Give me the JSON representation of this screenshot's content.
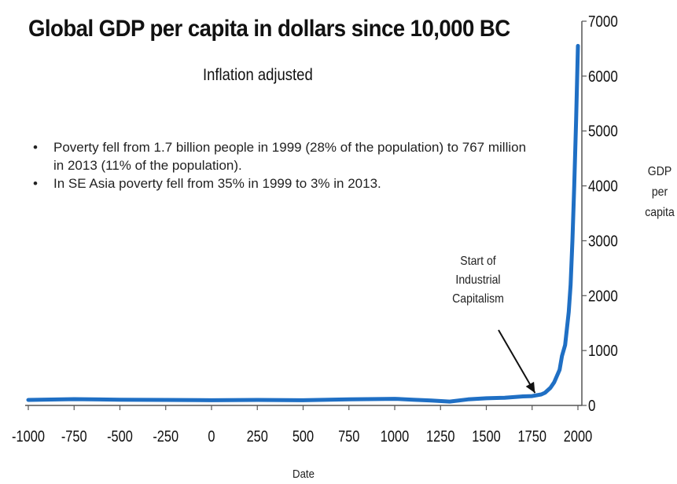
{
  "title": "Global GDP per capita in dollars since 10,000 BC",
  "subtitle": "Inflation adjusted",
  "notes": [
    "Poverty fell from 1.7 billion people in 1999 (28% of the population) to 767 million in 2013 (11% of the population).",
    "In SE Asia poverty fell from 35% in 1999 to 3% in 2013."
  ],
  "annotation": "Start of Industrial Capitalism",
  "colors": {
    "line": "#1f6fc4",
    "axis": "#555555",
    "text": "#111111"
  },
  "chart_data": {
    "type": "line",
    "xlabel": "Date",
    "ylabel": "GDP per capita",
    "xlim": [
      -1000,
      2000
    ],
    "ylim": [
      0,
      7000
    ],
    "xticks": [
      "-1000",
      "-750",
      "-500",
      "-250",
      "0",
      "250",
      "500",
      "750",
      "1000",
      "1250",
      "1500",
      "1750",
      "2000"
    ],
    "yticks": [
      "0",
      "1000",
      "2000",
      "3000",
      "4000",
      "5000",
      "6000",
      "7000"
    ],
    "y_axis_position": "right",
    "grid": false,
    "annotations": [
      {
        "text": "Start of Industrial Capitalism",
        "x": 1800,
        "y": 170
      }
    ],
    "series": [
      {
        "x": [
          -1000,
          -750,
          -500,
          -250,
          0,
          250,
          500,
          750,
          1000,
          1100,
          1200,
          1300,
          1400,
          1500,
          1600,
          1700,
          1750,
          1800,
          1820,
          1850,
          1870,
          1900,
          1913,
          1930,
          1950,
          1960,
          1970,
          1980,
          1990,
          2000
        ],
        "y": [
          100,
          115,
          105,
          100,
          95,
          100,
          95,
          110,
          120,
          105,
          90,
          70,
          110,
          130,
          140,
          165,
          170,
          200,
          230,
          320,
          420,
          650,
          900,
          1100,
          1700,
          2200,
          3000,
          4000,
          5200,
          6550
        ]
      }
    ]
  }
}
